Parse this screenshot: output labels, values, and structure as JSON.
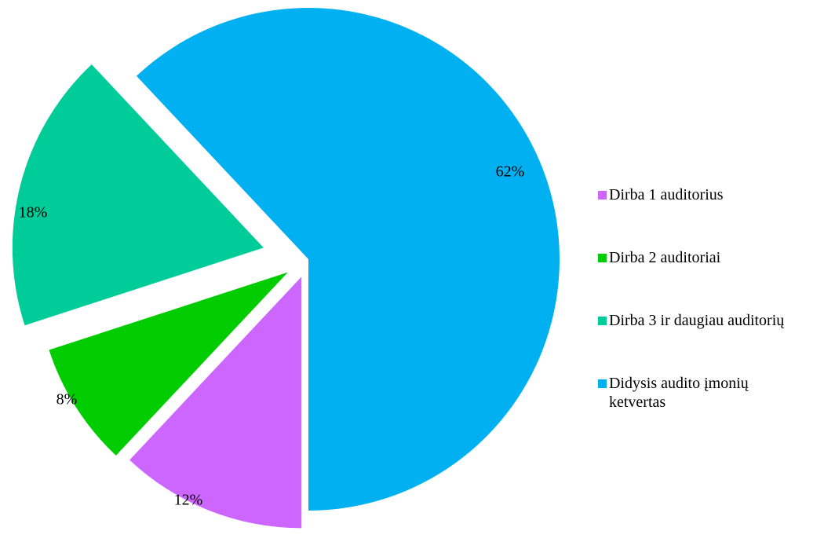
{
  "chart_data": {
    "type": "pie",
    "title": "",
    "slices": [
      {
        "label": "Dirba 1 auditorius",
        "value": 12,
        "display": "12%",
        "color": "#CC66FF"
      },
      {
        "label": "Dirba 2 auditoriai",
        "value": 8,
        "display": "8%",
        "color": "#00CC00"
      },
      {
        "label": "Dirba 3 ir daugiau auditorių",
        "value": 18,
        "display": "18%",
        "color": "#00CC99"
      },
      {
        "label": "Didysis audito įmonių\nketvertas",
        "value": 62,
        "display": "62%",
        "color": "#00B0F0"
      }
    ],
    "exploded": true,
    "legend_position": "right"
  }
}
